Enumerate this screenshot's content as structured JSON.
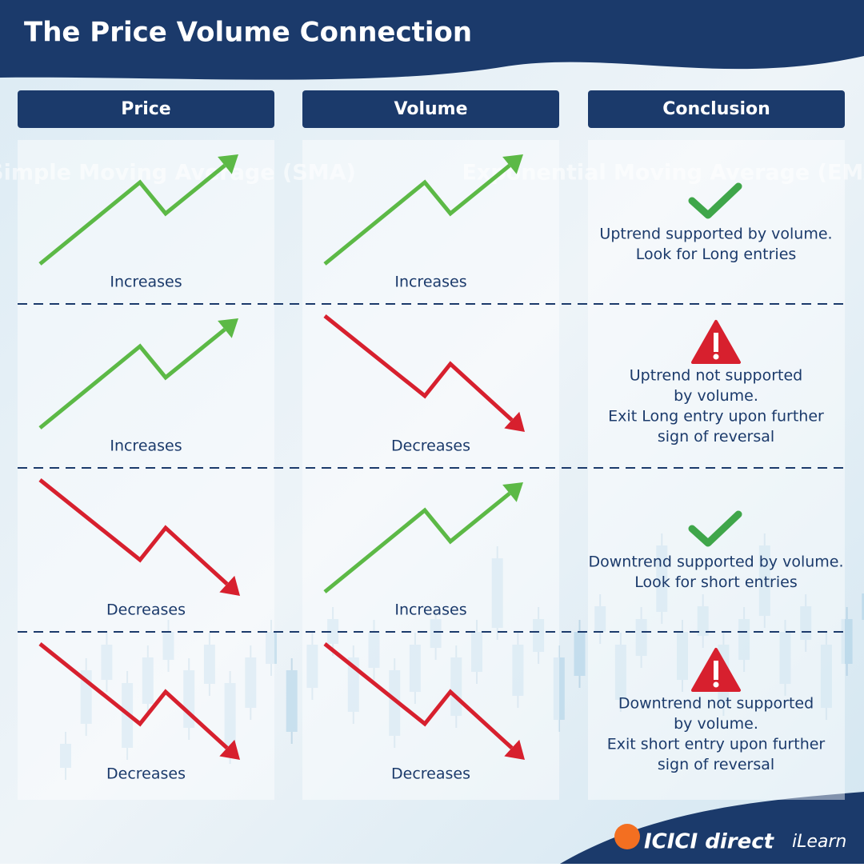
{
  "header": {
    "title": "The Price Volume Connection"
  },
  "columns": [
    "Price",
    "Volume",
    "Conclusion"
  ],
  "watermarks": [
    "Simple Moving Average (SMA)",
    "Exponential Moving Average (EMA)"
  ],
  "rows": [
    {
      "price": {
        "label": "Increases",
        "direction": "up"
      },
      "volume": {
        "label": "Increases",
        "direction": "up"
      },
      "conclusion": {
        "icon": "check",
        "lines": [
          "Uptrend supported by volume.",
          "Look for Long entries"
        ]
      }
    },
    {
      "price": {
        "label": "Increases",
        "direction": "up"
      },
      "volume": {
        "label": "Decreases",
        "direction": "down"
      },
      "conclusion": {
        "icon": "warning",
        "lines": [
          "Uptrend not supported",
          "by volume.",
          "Exit Long entry upon further",
          "sign of reversal"
        ]
      }
    },
    {
      "price": {
        "label": "Decreases",
        "direction": "down"
      },
      "volume": {
        "label": "Increases",
        "direction": "up"
      },
      "conclusion": {
        "icon": "check",
        "lines": [
          "Downtrend supported by volume.",
          "Look for short entries"
        ]
      }
    },
    {
      "price": {
        "label": "Decreases",
        "direction": "down"
      },
      "volume": {
        "label": "Decreases",
        "direction": "down"
      },
      "conclusion": {
        "icon": "warning",
        "lines": [
          "Downtrend not supported",
          "by volume.",
          "Exit short entry upon further",
          "sign of reversal"
        ]
      }
    }
  ],
  "logo": {
    "brand": "ICICI direct",
    "product": "iLearn"
  }
}
